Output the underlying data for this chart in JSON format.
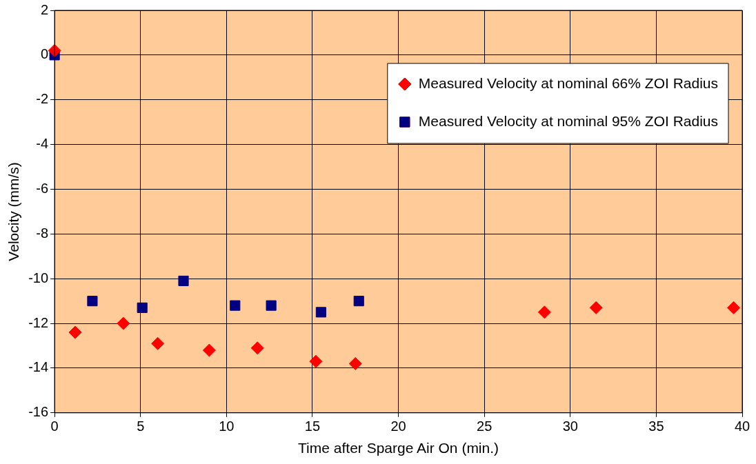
{
  "chart_data": {
    "type": "scatter",
    "xlabel": "Time after Sparge Air On (min.)",
    "ylabel": "Velocity (mm/s)",
    "xlim": [
      0,
      40
    ],
    "xticks": [
      0,
      5,
      10,
      15,
      20,
      25,
      30,
      35,
      40
    ],
    "ylim": [
      -16,
      2
    ],
    "yticks": [
      -16,
      -14,
      -12,
      -10,
      -8,
      -6,
      -4,
      -2,
      0,
      2
    ],
    "grid": true,
    "legend": "top right",
    "series": [
      {
        "name": "Measured Velocity at nominal 66% ZOI Radius",
        "color": "#ff0000",
        "marker": "diamond",
        "x": [
          0,
          1.2,
          4.0,
          6.0,
          9.0,
          11.8,
          15.2,
          17.5,
          28.5,
          31.5,
          39.5
        ],
        "values": [
          0.2,
          -12.4,
          -12.0,
          -12.9,
          -13.2,
          -13.1,
          -13.7,
          -13.8,
          -11.5,
          -11.3,
          -11.3
        ]
      },
      {
        "name": "Measured Velocity at nominal 95% ZOI Radius",
        "color": "#000080",
        "marker": "square",
        "x": [
          0,
          2.2,
          5.1,
          7.5,
          10.5,
          12.6,
          15.5,
          17.7
        ],
        "values": [
          0,
          -11.0,
          -11.3,
          -10.1,
          -11.2,
          -11.2,
          -11.5,
          -11.0
        ]
      }
    ]
  }
}
